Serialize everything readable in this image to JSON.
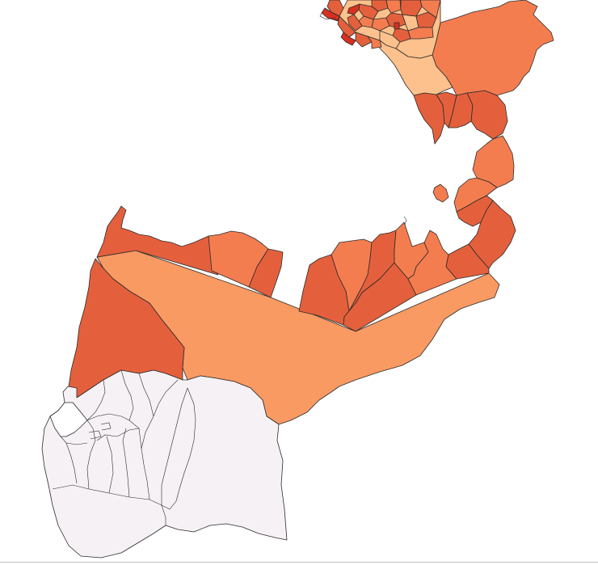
{
  "map": {
    "type": "choropleth",
    "background": "#ffffff",
    "border_color": "#2b2b2b",
    "palette": {
      "class_dark": "#e4603c",
      "class_mid": "#f47d50",
      "class_light": "#f99a63",
      "class_pale": "#fcc18c",
      "class_red": "#d7301f",
      "no_data": "#f6f1f5"
    }
  }
}
